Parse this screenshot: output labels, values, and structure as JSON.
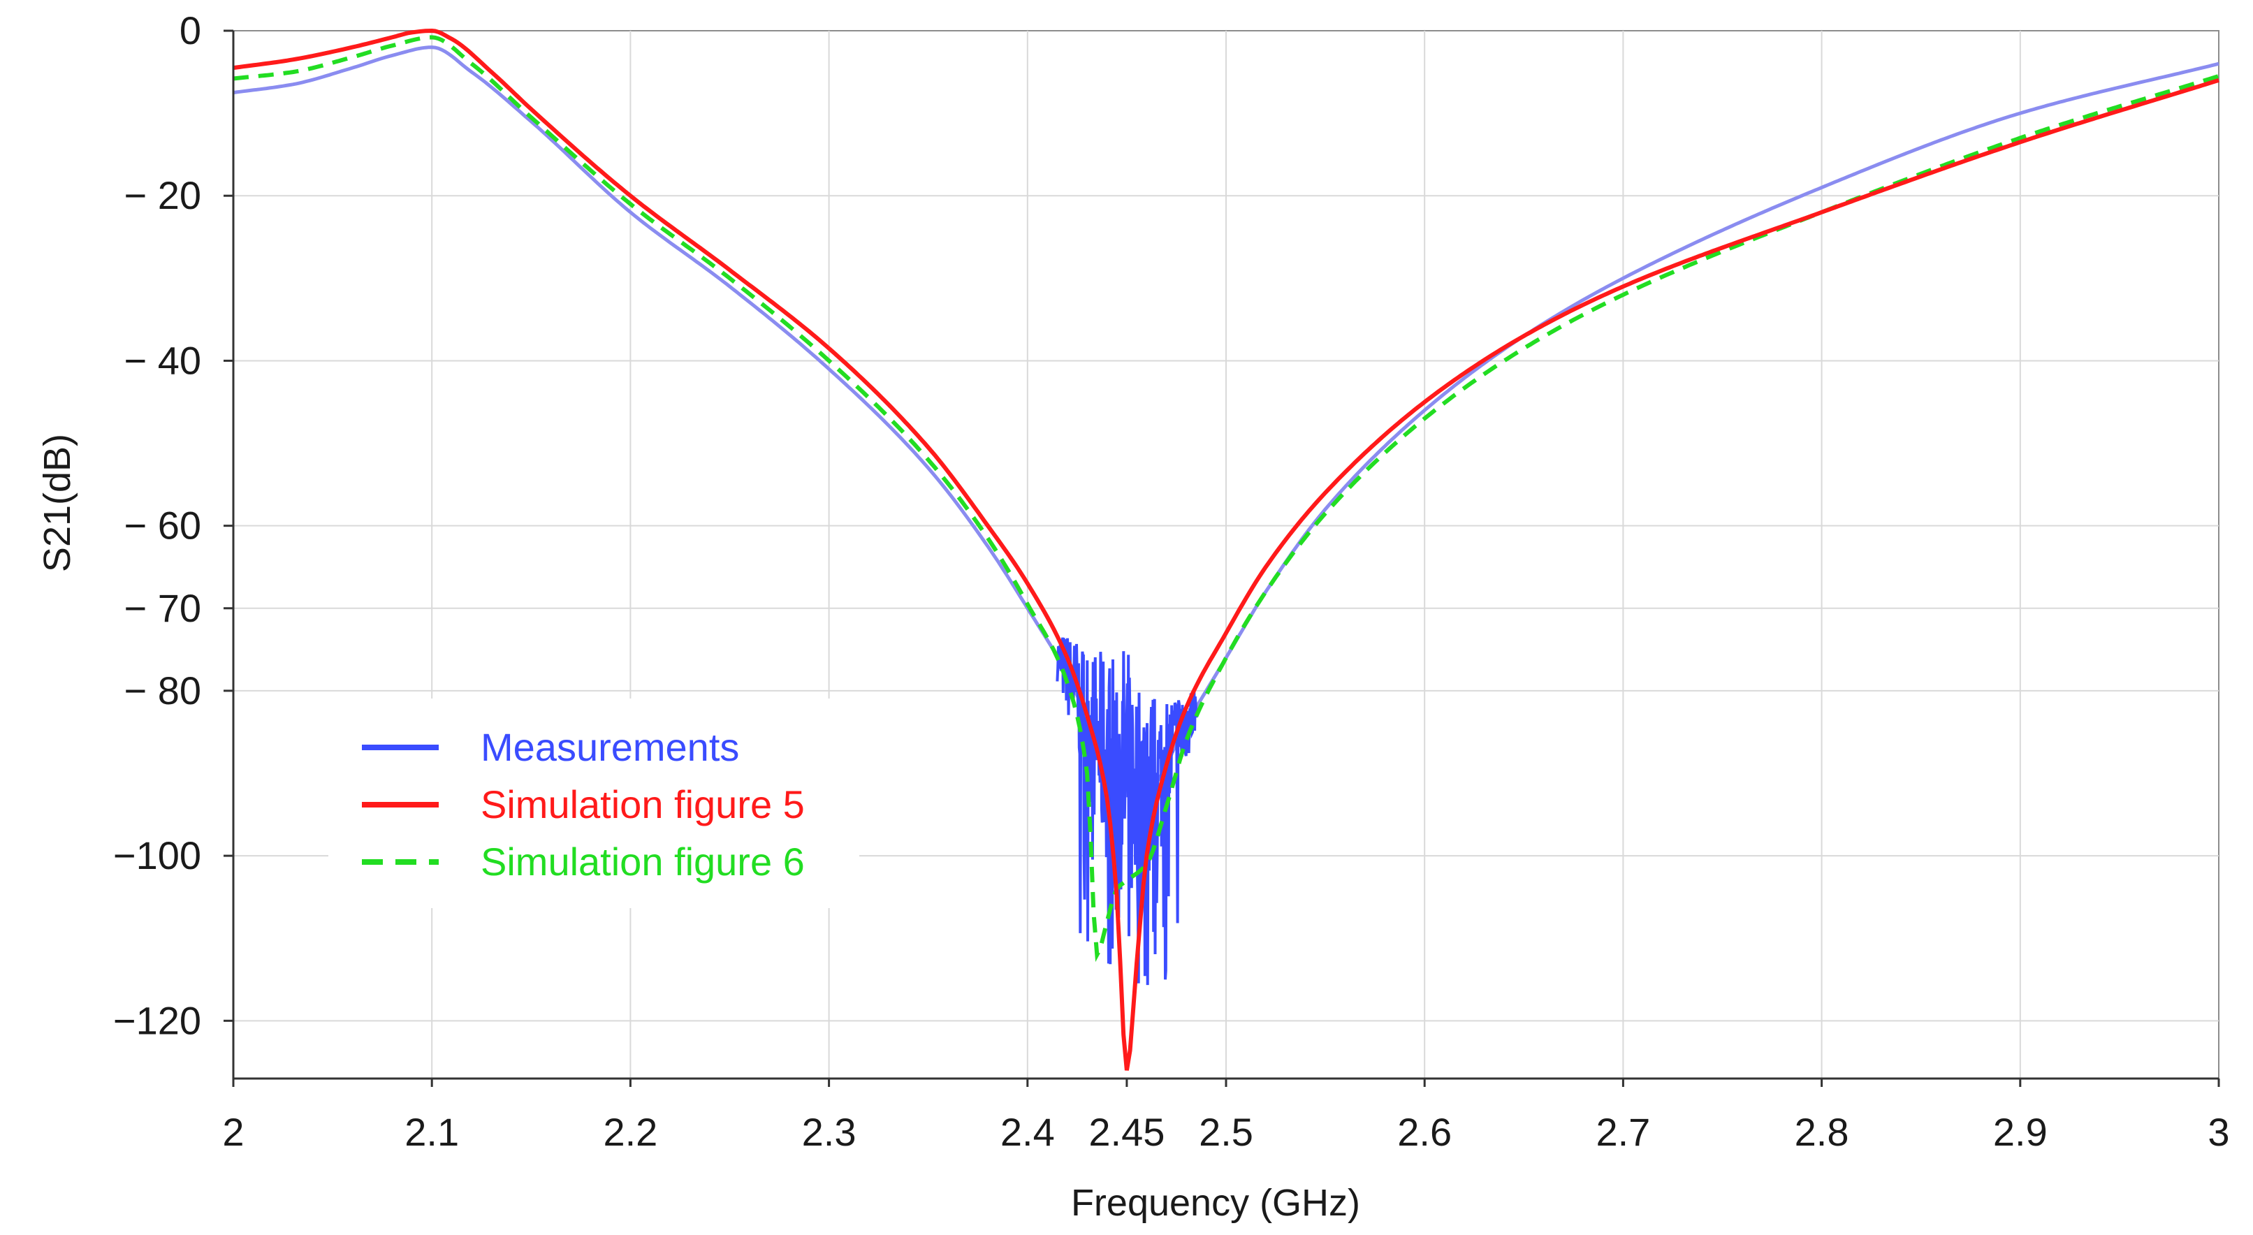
{
  "chart_data": {
    "type": "line",
    "title": "",
    "xlabel": "Frequency (GHz)",
    "ylabel": "S21(dB)",
    "xlim": [
      2.0,
      3.0
    ],
    "ylim": [
      -127,
      0
    ],
    "grid": true,
    "legend_position": "lower-left",
    "x_ticks": [
      {
        "value": 2.0,
        "label": "2"
      },
      {
        "value": 2.1,
        "label": "2.1"
      },
      {
        "value": 2.2,
        "label": "2.2"
      },
      {
        "value": 2.3,
        "label": "2.3"
      },
      {
        "value": 2.4,
        "label": "2.4"
      },
      {
        "value": 2.45,
        "label": "2.45"
      },
      {
        "value": 2.5,
        "label": "2.5"
      },
      {
        "value": 2.6,
        "label": "2.6"
      },
      {
        "value": 2.7,
        "label": "2.7"
      },
      {
        "value": 2.8,
        "label": "2.8"
      },
      {
        "value": 2.9,
        "label": "2.9"
      },
      {
        "value": 3.0,
        "label": "3"
      }
    ],
    "y_ticks": [
      {
        "value": 0,
        "label": "0"
      },
      {
        "value": -20,
        "label": "− 20"
      },
      {
        "value": -40,
        "label": "− 40"
      },
      {
        "value": -60,
        "label": "− 60"
      },
      {
        "value": -70,
        "label": "− 70"
      },
      {
        "value": -80,
        "label": "− 80"
      },
      {
        "value": -100,
        "label": "−100"
      },
      {
        "value": -120,
        "label": "−120"
      }
    ],
    "series": [
      {
        "name": "Measurements",
        "color": "#3a4cff",
        "smooth_color": "#8a8cf0",
        "dash": "solid",
        "x": [
          2.0,
          2.03,
          2.06,
          2.08,
          2.1,
          2.12,
          2.15,
          2.2,
          2.25,
          2.3,
          2.35,
          2.38,
          2.4,
          2.42,
          2.44,
          2.46,
          2.48,
          2.5,
          2.52,
          2.55,
          2.6,
          2.65,
          2.7,
          2.8,
          2.9,
          3.0
        ],
        "y": [
          -7.5,
          -6.5,
          -4.5,
          -3.0,
          -2.0,
          -5.0,
          -11.0,
          -22.0,
          -31.0,
          -41.0,
          -53.0,
          -62.5,
          -70.0,
          -78.0,
          -88.0,
          -92.0,
          -84.0,
          -76.0,
          -68.0,
          -58.0,
          -46.0,
          -37.0,
          -30.0,
          -19.0,
          -10.0,
          -4.0
        ]
      },
      {
        "name": "Simulation figure 5",
        "color": "#ff1a1a",
        "dash": "solid",
        "x": [
          2.0,
          2.03,
          2.06,
          2.08,
          2.09,
          2.1,
          2.11,
          2.13,
          2.15,
          2.2,
          2.25,
          2.3,
          2.35,
          2.38,
          2.4,
          2.42,
          2.43,
          2.44,
          2.445,
          2.45,
          2.455,
          2.46,
          2.47,
          2.48,
          2.5,
          2.52,
          2.55,
          2.6,
          2.65,
          2.7,
          2.8,
          2.9,
          3.0
        ],
        "y": [
          -4.5,
          -3.5,
          -2.0,
          -0.8,
          -0.2,
          0.0,
          -1.0,
          -5.0,
          -9.5,
          -20.0,
          -29.0,
          -38.5,
          -50.5,
          -60.0,
          -67.0,
          -76.0,
          -83.0,
          -93.0,
          -105.0,
          -126.0,
          -113.0,
          -100.0,
          -89.0,
          -82.0,
          -73.0,
          -65.0,
          -56.0,
          -45.0,
          -37.0,
          -31.0,
          -22.0,
          -13.5,
          -6.0
        ]
      },
      {
        "name": "Simulation figure 6",
        "color": "#22dd22",
        "dash": "dashed",
        "x": [
          2.0,
          2.03,
          2.06,
          2.08,
          2.1,
          2.12,
          2.15,
          2.2,
          2.25,
          2.3,
          2.35,
          2.38,
          2.4,
          2.42,
          2.43,
          2.435,
          2.44,
          2.445,
          2.45,
          2.46,
          2.47,
          2.48,
          2.5,
          2.52,
          2.55,
          2.6,
          2.65,
          2.7,
          2.8,
          2.9,
          3.0
        ],
        "y": [
          -5.8,
          -5.0,
          -3.2,
          -1.8,
          -0.8,
          -4.0,
          -10.5,
          -21.0,
          -30.0,
          -40.0,
          -52.0,
          -61.5,
          -69.5,
          -79.0,
          -90.0,
          -112.0,
          -108.0,
          -104.0,
          -103.0,
          -101.0,
          -94.0,
          -86.0,
          -76.0,
          -68.0,
          -58.5,
          -47.0,
          -38.5,
          -32.0,
          -22.0,
          -13.0,
          -5.5
        ]
      }
    ]
  }
}
